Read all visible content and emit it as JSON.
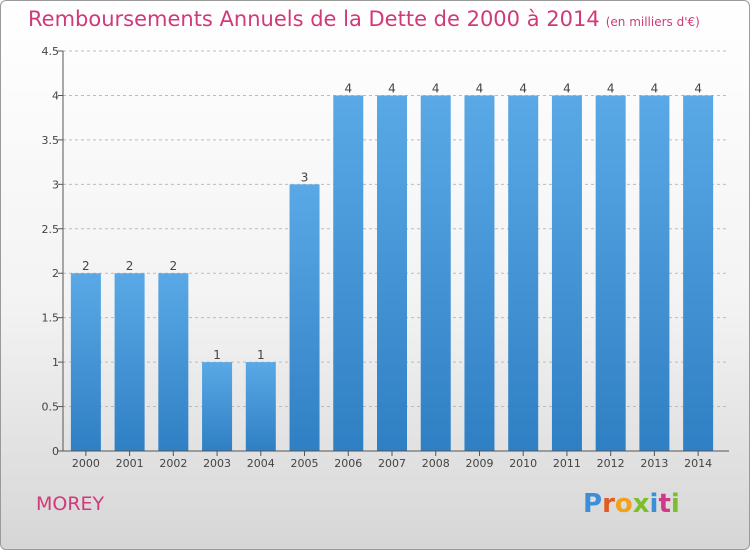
{
  "header": {
    "title": "Remboursements Annuels de la Dette de 2000 à 2014",
    "unit": "(en milliers d'€)"
  },
  "footer": {
    "town": "MOREY",
    "logo": [
      "P",
      "r",
      "o",
      "x",
      "i",
      "t",
      "i"
    ],
    "logo_colors": [
      "#3a8fd8",
      "#e35a1f",
      "#f0a21a",
      "#7bbf2a",
      "#3a8fd8",
      "#d0398a",
      "#7bbf2a"
    ]
  },
  "colors": {
    "title": "#d03a7a",
    "bar_light": "#5aa9e6",
    "bar_dark": "#2f7fc4",
    "axis": "#555555",
    "grid": "#bbbbbb"
  },
  "chart_data": {
    "type": "bar",
    "title": "Remboursements Annuels de la Dette de 2000 à 2014",
    "subtitle": "(en milliers d'€)",
    "categories": [
      "2000",
      "2001",
      "2002",
      "2003",
      "2004",
      "2005",
      "2006",
      "2007",
      "2008",
      "2009",
      "2010",
      "2011",
      "2012",
      "2013",
      "2014"
    ],
    "values": [
      2,
      2,
      2,
      1,
      1,
      3,
      4,
      4,
      4,
      4,
      4,
      4,
      4,
      4,
      4
    ],
    "data_labels": [
      "2",
      "2",
      "2",
      "1",
      "1",
      "3",
      "4",
      "4",
      "4",
      "4",
      "4",
      "4",
      "4",
      "4",
      "4"
    ],
    "ylim": [
      0,
      4.5
    ],
    "yticks": [
      "0",
      "0.5",
      "1",
      "1.5",
      "2",
      "2.5",
      "3",
      "3.5",
      "4",
      "4.5"
    ],
    "grid": "dashed horizontal",
    "xlabel": "",
    "ylabel": ""
  }
}
